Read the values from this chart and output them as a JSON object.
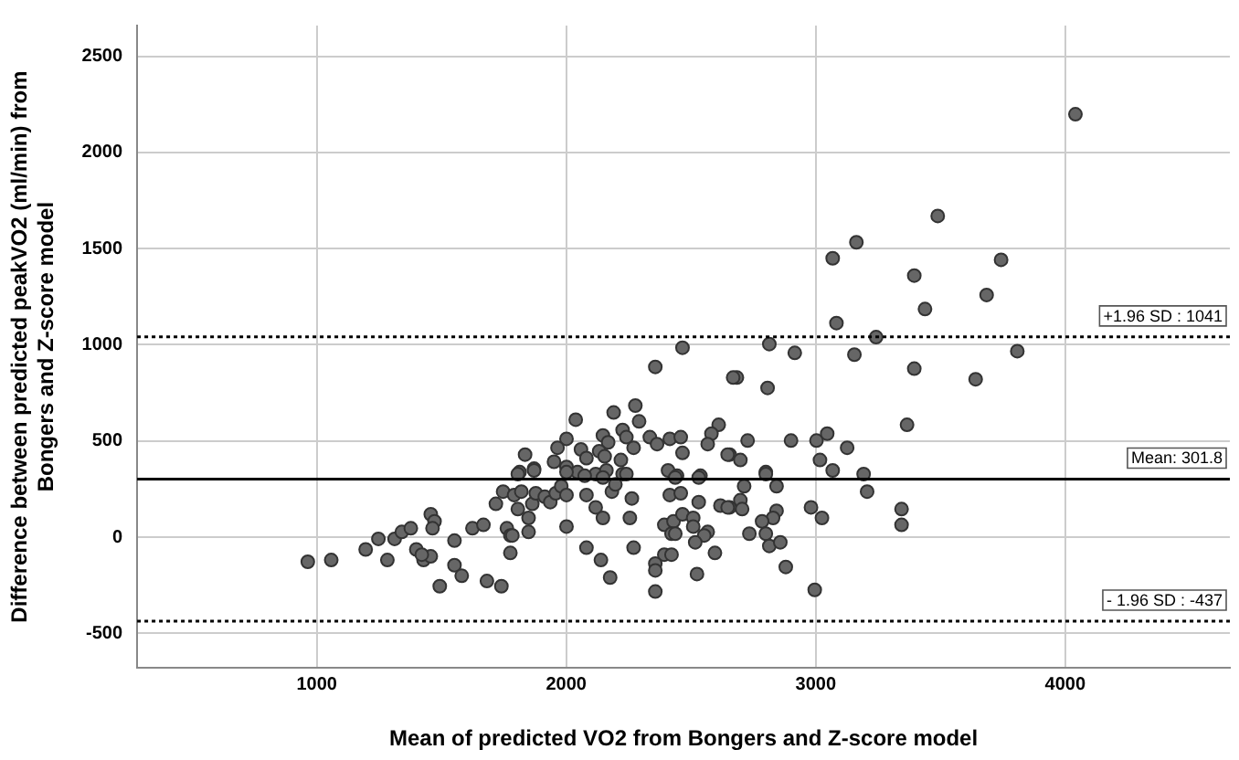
{
  "chart_data": {
    "type": "scatter",
    "xlabel": "Mean of predicted VO2 from Bongers and Z-score model",
    "ylabel": "Difference between predicted peakVO2 (ml/min) from\nBongers and Z-score model",
    "xlim": [
      280,
      4660
    ],
    "ylim": [
      -680,
      2660
    ],
    "xticks": [
      1000,
      2000,
      3000,
      4000
    ],
    "yticks": [
      -500,
      0,
      500,
      1000,
      1500,
      2000,
      2500
    ],
    "grid": true,
    "legend": false,
    "marker": "circle",
    "series": [
      {
        "color": "#666666",
        "x": [
          4041,
          3489,
          3163,
          3068,
          3743,
          3395,
          3685,
          3438,
          3083,
          3242,
          2814,
          2916,
          3155,
          3808,
          2684,
          2807,
          3395,
          3641,
          3366,
          2727,
          2901,
          3003,
          3046,
          3126,
          2655,
          2698,
          2800,
          3017,
          3068,
          3192,
          2466,
          2357,
          2669,
          2277,
          2190,
          2292,
          2038,
          2611,
          2226,
          2582,
          2001,
          2147,
          2335,
          2415,
          2459,
          2567,
          1965,
          2059,
          2168,
          2241,
          2270,
          2364,
          2466,
          2647,
          1835,
          2132,
          2154,
          2219,
          2081,
          1951,
          1871,
          1813,
          2001,
          2045,
          2118,
          2161,
          2226,
          2408,
          2444,
          2538,
          964,
          1058,
          1196,
          1283,
          1247,
          1312,
          1341,
          1377,
          1399,
          1428,
          1457,
          1421,
          1457,
          1472,
          1464,
          1552,
          1552,
          1581,
          1493,
          1624,
          1668,
          1682,
          1740,
          1718,
          1747,
          1762,
          1776,
          1776,
          1784,
          1806,
          1849,
          1849,
          1791,
          1820,
          1864,
          1878,
          1914,
          1936,
          1958,
          1980,
          2001,
          2001,
          2081,
          2118,
          2147,
          2081,
          2139,
          2176,
          2183,
          2263,
          2255,
          2270,
          1806,
          1871,
          2001,
          2074,
          2147,
          2197,
          2241,
          2415,
          2459,
          2531,
          2393,
          2430,
          2466,
          2509,
          2509,
          2422,
          2437,
          2567,
          2553,
          2517,
          2393,
          2422,
          2357,
          2357,
          2357,
          2524,
          2596,
          2618,
          2655,
          2437,
          2531,
          2713,
          2698,
          2705,
          2647,
          2843,
          2800,
          2843,
          2829,
          2785,
          2734,
          2800,
          2814,
          2858,
          2880,
          2996,
          2981,
          3025,
          3206,
          3344,
          3344
        ],
        "values": [
          2199,
          1670,
          1533,
          1450,
          1442,
          1360,
          1259,
          1186,
          1113,
          1040,
          1004,
          958,
          949,
          967,
          830,
          776,
          876,
          821,
          584,
          502,
          502,
          502,
          538,
          465,
          429,
          401,
          338,
          401,
          347,
          328,
          985,
          885,
          830,
          684,
          648,
          602,
          611,
          584,
          557,
          538,
          511,
          529,
          520,
          511,
          520,
          484,
          465,
          456,
          493,
          520,
          465,
          484,
          438,
          429,
          429,
          447,
          420,
          401,
          411,
          392,
          356,
          338,
          365,
          338,
          328,
          347,
          328,
          347,
          319,
          319,
          -128,
          -119,
          -64,
          -119,
          -9,
          -9,
          27,
          46,
          -64,
          -119,
          -100,
          -91,
          119,
          82,
          46,
          -18,
          -146,
          -201,
          -255,
          46,
          64,
          -228,
          -255,
          173,
          237,
          46,
          9,
          -82,
          9,
          146,
          100,
          27,
          219,
          237,
          173,
          228,
          210,
          182,
          228,
          265,
          219,
          55,
          219,
          155,
          100,
          -55,
          -119,
          -210,
          237,
          201,
          100,
          -55,
          328,
          347,
          338,
          319,
          310,
          274,
          328,
          219,
          228,
          182,
          64,
          82,
          119,
          100,
          55,
          18,
          18,
          27,
          9,
          -27,
          -91,
          -91,
          -137,
          -173,
          -283,
          -192,
          -82,
          164,
          155,
          310,
          310,
          265,
          192,
          146,
          155,
          265,
          328,
          137,
          100,
          82,
          18,
          18,
          -46,
          -27,
          -155,
          -274,
          155,
          100,
          237,
          146,
          64
        ]
      }
    ],
    "ref_lines": [
      {
        "axis": "y",
        "value": 1041,
        "label": "+1.96 SD : 1041",
        "color": "#000000",
        "line_style": "dotted"
      },
      {
        "axis": "y",
        "value": 301.8,
        "label": "Mean: 301.8",
        "color": "#000000",
        "line_style": "solid"
      },
      {
        "axis": "y",
        "value": -437,
        "label": "- 1.96 SD : -437",
        "color": "#000000",
        "line_style": "dotted"
      }
    ]
  }
}
